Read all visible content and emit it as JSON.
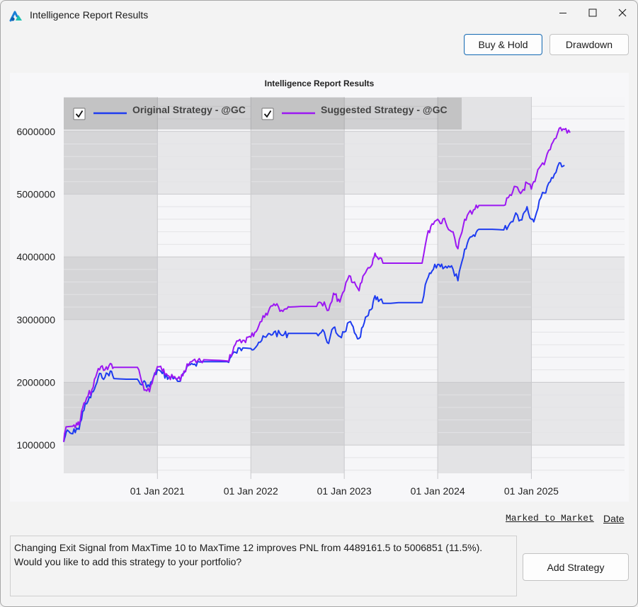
{
  "window": {
    "title": "Intelligence Report Results"
  },
  "toolbar": {
    "buy_hold_label": "Buy & Hold",
    "drawdown_label": "Drawdown"
  },
  "chart": {
    "title": "Intelligence Report Results"
  },
  "chart_data": {
    "type": "line",
    "title": "Intelligence Report Results",
    "x_ticks": [
      "01 Jan 2021",
      "01 Jan 2022",
      "01 Jan 2023",
      "01 Jan 2024",
      "01 Jan 2025"
    ],
    "y_ticks": [
      "1000000",
      "2000000",
      "3000000",
      "4000000",
      "5000000",
      "6000000"
    ],
    "xlim": [
      "2020-01-01",
      "2025-12-31"
    ],
    "ylim": [
      550000,
      6550000
    ],
    "legend_position": "top-left",
    "grid": true,
    "series": [
      {
        "name": "Original Strategy - @GC",
        "color": "#1e3cf0",
        "checked": true,
        "points": [
          [
            "2020-01-01",
            1050000
          ],
          [
            "2020-01-10",
            1200000
          ],
          [
            "2020-02-05",
            1180000
          ],
          [
            "2020-02-20",
            1270000
          ],
          [
            "2020-03-01",
            1250000
          ],
          [
            "2020-03-15",
            1530000
          ],
          [
            "2020-04-05",
            1700000
          ],
          [
            "2020-04-25",
            1850000
          ],
          [
            "2020-05-10",
            2000000
          ],
          [
            "2020-05-25",
            2140000
          ],
          [
            "2020-06-10",
            2080000
          ],
          [
            "2020-07-01",
            2180000
          ],
          [
            "2020-07-15",
            2060000
          ],
          [
            "2020-09-01",
            2050000
          ],
          [
            "2020-10-15",
            2050000
          ],
          [
            "2020-11-01",
            1960000
          ],
          [
            "2020-11-15",
            2000000
          ],
          [
            "2020-12-01",
            1930000
          ],
          [
            "2021-01-01",
            2200000
          ],
          [
            "2021-01-20",
            2140000
          ],
          [
            "2021-02-15",
            2080000
          ],
          [
            "2021-03-15",
            2060000
          ],
          [
            "2021-04-01",
            2020000
          ],
          [
            "2021-04-15",
            2150000
          ],
          [
            "2021-05-15",
            2300000
          ],
          [
            "2021-07-01",
            2330000
          ],
          [
            "2021-09-01",
            2330000
          ],
          [
            "2021-10-01",
            2330000
          ],
          [
            "2021-11-01",
            2480000
          ],
          [
            "2021-12-01",
            2550000
          ],
          [
            "2022-01-01",
            2540000
          ],
          [
            "2022-02-01",
            2640000
          ],
          [
            "2022-03-01",
            2720000
          ],
          [
            "2022-04-01",
            2800000
          ],
          [
            "2022-05-01",
            2750000
          ],
          [
            "2022-06-01",
            2780000
          ],
          [
            "2022-07-15",
            2780000
          ],
          [
            "2022-09-15",
            2780000
          ],
          [
            "2022-10-15",
            2800000
          ],
          [
            "2022-11-01",
            2620000
          ],
          [
            "2022-11-20",
            2870000
          ],
          [
            "2022-12-15",
            2730000
          ],
          [
            "2023-01-01",
            2800000
          ],
          [
            "2023-01-20",
            2960000
          ],
          [
            "2023-02-10",
            2790000
          ],
          [
            "2023-02-28",
            2700000
          ],
          [
            "2023-03-20",
            2950000
          ],
          [
            "2023-04-20",
            3180000
          ],
          [
            "2023-05-01",
            3380000
          ],
          [
            "2023-05-15",
            3290000
          ],
          [
            "2023-06-01",
            3260000
          ],
          [
            "2023-07-01",
            3260000
          ],
          [
            "2023-08-01",
            3270000
          ],
          [
            "2023-10-01",
            3270000
          ],
          [
            "2023-11-01",
            3270000
          ],
          [
            "2023-11-20",
            3630000
          ],
          [
            "2023-12-15",
            3800000
          ],
          [
            "2024-01-01",
            3880000
          ],
          [
            "2024-02-01",
            3850000
          ],
          [
            "2024-03-01",
            3800000
          ],
          [
            "2024-03-20",
            3620000
          ],
          [
            "2024-04-10",
            4000000
          ],
          [
            "2024-05-01",
            4280000
          ],
          [
            "2024-05-20",
            4350000
          ],
          [
            "2024-06-10",
            4440000
          ],
          [
            "2024-08-01",
            4440000
          ],
          [
            "2024-09-15",
            4430000
          ],
          [
            "2024-10-15",
            4560000
          ],
          [
            "2024-11-01",
            4700000
          ],
          [
            "2024-11-20",
            4590000
          ],
          [
            "2024-12-15",
            4800000
          ],
          [
            "2025-01-01",
            4600000
          ],
          [
            "2025-01-15",
            4620000
          ],
          [
            "2025-02-01",
            4900000
          ],
          [
            "2025-02-20",
            5020000
          ],
          [
            "2025-03-10",
            5180000
          ],
          [
            "2025-04-01",
            5320000
          ],
          [
            "2025-04-20",
            5500000
          ],
          [
            "2025-05-10",
            5460000
          ]
        ]
      },
      {
        "name": "Suggested Strategy - @GC",
        "color": "#9c17f2",
        "checked": true,
        "points": [
          [
            "2020-01-01",
            1050000
          ],
          [
            "2020-01-10",
            1290000
          ],
          [
            "2020-02-05",
            1300000
          ],
          [
            "2020-02-20",
            1350000
          ],
          [
            "2020-03-01",
            1320000
          ],
          [
            "2020-03-15",
            1590000
          ],
          [
            "2020-04-05",
            1780000
          ],
          [
            "2020-04-25",
            1920000
          ],
          [
            "2020-05-10",
            2150000
          ],
          [
            "2020-05-25",
            2250000
          ],
          [
            "2020-06-10",
            2200000
          ],
          [
            "2020-07-01",
            2300000
          ],
          [
            "2020-07-15",
            2240000
          ],
          [
            "2020-09-01",
            2240000
          ],
          [
            "2020-10-15",
            2240000
          ],
          [
            "2020-11-01",
            2000000
          ],
          [
            "2020-11-15",
            1880000
          ],
          [
            "2020-12-01",
            1850000
          ],
          [
            "2021-01-01",
            2250000
          ],
          [
            "2021-01-20",
            2180000
          ],
          [
            "2021-02-15",
            2100000
          ],
          [
            "2021-03-15",
            2050000
          ],
          [
            "2021-04-01",
            2030000
          ],
          [
            "2021-04-15",
            2180000
          ],
          [
            "2021-05-15",
            2330000
          ],
          [
            "2021-07-01",
            2360000
          ],
          [
            "2021-09-01",
            2350000
          ],
          [
            "2021-10-01",
            2340000
          ],
          [
            "2021-11-01",
            2600000
          ],
          [
            "2021-12-01",
            2670000
          ],
          [
            "2022-01-01",
            2720000
          ],
          [
            "2022-02-01",
            2900000
          ],
          [
            "2022-03-01",
            3100000
          ],
          [
            "2022-04-01",
            3250000
          ],
          [
            "2022-05-01",
            3150000
          ],
          [
            "2022-06-01",
            3200000
          ],
          [
            "2022-07-15",
            3210000
          ],
          [
            "2022-09-15",
            3210000
          ],
          [
            "2022-10-15",
            3280000
          ],
          [
            "2022-11-01",
            3150000
          ],
          [
            "2022-11-20",
            3420000
          ],
          [
            "2022-12-15",
            3280000
          ],
          [
            "2023-01-01",
            3460000
          ],
          [
            "2023-01-20",
            3700000
          ],
          [
            "2023-02-10",
            3600000
          ],
          [
            "2023-02-28",
            3460000
          ],
          [
            "2023-03-20",
            3720000
          ],
          [
            "2023-04-20",
            3880000
          ],
          [
            "2023-05-01",
            4060000
          ],
          [
            "2023-05-15",
            3960000
          ],
          [
            "2023-06-01",
            3900000
          ],
          [
            "2023-07-01",
            3900000
          ],
          [
            "2023-08-01",
            3900000
          ],
          [
            "2023-10-01",
            3900000
          ],
          [
            "2023-11-01",
            3900000
          ],
          [
            "2023-11-20",
            4320000
          ],
          [
            "2023-12-15",
            4520000
          ],
          [
            "2024-01-01",
            4600000
          ],
          [
            "2024-02-01",
            4550000
          ],
          [
            "2024-03-01",
            4400000
          ],
          [
            "2024-03-20",
            4130000
          ],
          [
            "2024-04-10",
            4500000
          ],
          [
            "2024-05-01",
            4700000
          ],
          [
            "2024-05-20",
            4750000
          ],
          [
            "2024-06-10",
            4820000
          ],
          [
            "2024-08-01",
            4820000
          ],
          [
            "2024-09-15",
            4820000
          ],
          [
            "2024-10-15",
            4980000
          ],
          [
            "2024-11-01",
            5120000
          ],
          [
            "2024-11-20",
            5010000
          ],
          [
            "2024-12-15",
            5180000
          ],
          [
            "2025-01-01",
            5080000
          ],
          [
            "2025-01-15",
            5200000
          ],
          [
            "2025-02-01",
            5420000
          ],
          [
            "2025-02-20",
            5470000
          ],
          [
            "2025-03-10",
            5700000
          ],
          [
            "2025-04-01",
            5880000
          ],
          [
            "2025-04-20",
            6050000
          ],
          [
            "2025-05-10",
            6030000
          ],
          [
            "2025-06-01",
            5980000
          ]
        ]
      }
    ]
  },
  "footer": {
    "marked_to_market_label": "Marked to Market",
    "date_label": "Date"
  },
  "message": {
    "line1": "Changing Exit Signal from MaxTime 10 to MaxTime 12 improves PNL from 4489161.5 to 5006851 (11.5%).",
    "line2": "Would you like to add this strategy to your portfolio?"
  },
  "actions": {
    "add_strategy_label": "Add Strategy"
  }
}
